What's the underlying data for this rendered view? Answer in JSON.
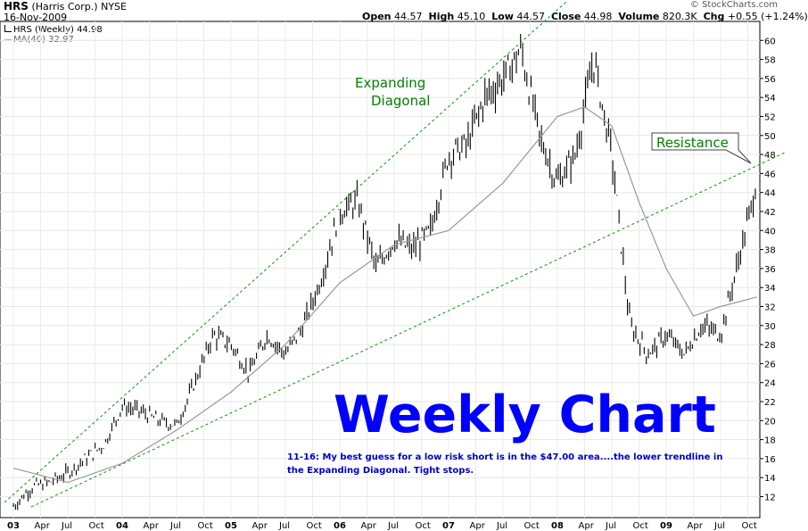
{
  "header": {
    "symbol": "HRS",
    "company": "(Harris Corp.)",
    "exchange": "NYSE",
    "date": "16-Nov-2009",
    "open_label": "Open",
    "open": "44.57",
    "high_label": "High",
    "high": "45.10",
    "low_label": "Low",
    "low": "44.57",
    "close_label": "Close",
    "close": "44.98",
    "volume_label": "Volume",
    "volume": "820.3K",
    "chg_label": "Chg",
    "chg": "+0.55 (+1.24%)",
    "watermark": "© StockCharts.com"
  },
  "legend": {
    "price": "HRS (Weekly) 44.98",
    "ma": "MA(40) 32.97"
  },
  "annotations": {
    "expanding_1": "Expanding",
    "expanding_2": "Diagonal",
    "resistance": "Resistance",
    "big_title": "Weekly Chart",
    "note_1": "11-16: My best guess for a low risk short is in the $47.00 area....the lower trendline in",
    "note_2": "the Expanding Diagonal. Tight stops."
  },
  "colors": {
    "price_bars": "#000000",
    "moving_average": "#999999",
    "trendlines": "#009900",
    "annotation_green": "#008000",
    "big_title": "#0000ff",
    "note": "#0000cc"
  },
  "chart_data": {
    "type": "line",
    "title": "HRS (Weekly)",
    "ylim": [
      11,
      62
    ],
    "yticks": [
      12,
      14,
      16,
      18,
      20,
      22,
      24,
      26,
      28,
      30,
      32,
      34,
      36,
      38,
      40,
      42,
      44,
      46,
      48,
      50,
      52,
      54,
      56,
      58,
      60
    ],
    "x_tick_labels": [
      "03",
      "Apr",
      "Jul",
      "Oct",
      "04",
      "Apr",
      "Jul",
      "Oct",
      "05",
      "Apr",
      "Jul",
      "Oct",
      "06",
      "Apr",
      "Jul",
      "Oct",
      "07",
      "Apr",
      "Jul",
      "Oct",
      "08",
      "Apr",
      "Jul",
      "Oct",
      "09",
      "Apr",
      "Jul",
      "Oct"
    ],
    "series": [
      {
        "name": "HRS (Weekly)",
        "x": [
          "2003-01",
          "2003-03",
          "2003-05",
          "2003-07",
          "2003-09",
          "2003-11",
          "2004-01",
          "2004-03",
          "2004-05",
          "2004-07",
          "2004-09",
          "2004-11",
          "2005-01",
          "2005-03",
          "2005-05",
          "2005-07",
          "2005-09",
          "2005-11",
          "2006-01",
          "2006-03",
          "2006-05",
          "2006-07",
          "2006-09",
          "2006-11",
          "2007-01",
          "2007-03",
          "2007-05",
          "2007-07",
          "2007-09",
          "2007-11",
          "2008-01",
          "2008-03",
          "2008-05",
          "2008-07",
          "2008-09",
          "2008-11",
          "2009-01",
          "2009-03",
          "2009-05",
          "2009-07",
          "2009-09",
          "2009-11"
        ],
        "values": [
          11,
          13,
          13.5,
          14.5,
          16,
          17.5,
          21.5,
          21,
          20,
          19.5,
          24,
          29,
          28,
          25,
          29,
          27,
          30,
          35,
          42,
          43,
          36,
          39,
          38,
          40,
          48,
          49,
          54,
          56,
          59,
          50,
          45,
          48,
          58,
          48,
          30,
          27,
          29,
          27,
          30,
          29,
          37,
          45
        ]
      },
      {
        "name": "MA(40)",
        "x": [
          "2003-01",
          "2003-07",
          "2004-01",
          "2004-07",
          "2005-01",
          "2005-07",
          "2006-01",
          "2006-07",
          "2007-01",
          "2007-07",
          "2008-01",
          "2008-04",
          "2008-07",
          "2008-10",
          "2009-01",
          "2009-04",
          "2009-07",
          "2009-11"
        ],
        "values": [
          15,
          13.5,
          15.5,
          19,
          23,
          28,
          34.5,
          38.5,
          40,
          45,
          52,
          53,
          51,
          43,
          36,
          31,
          32,
          33
        ]
      }
    ]
  }
}
